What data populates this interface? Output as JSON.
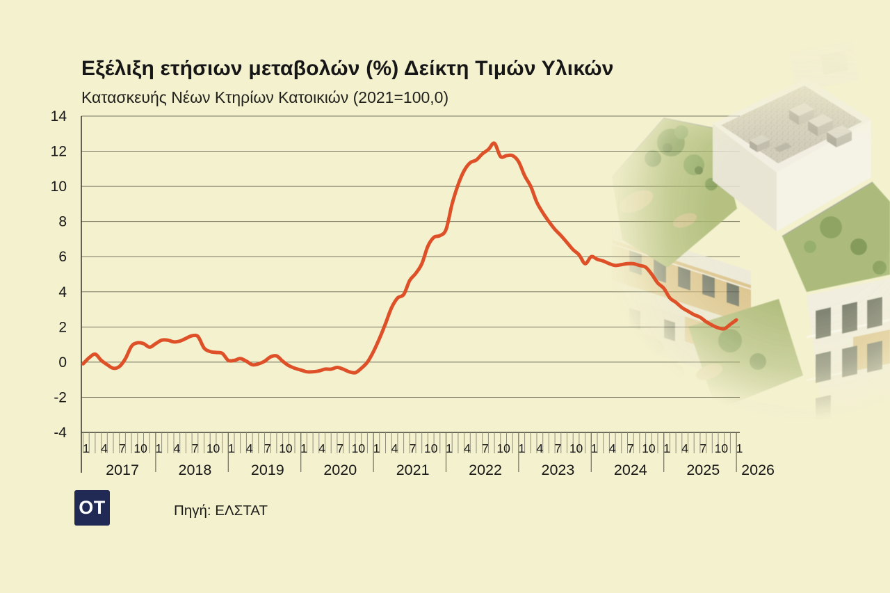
{
  "title": "Εξέλιξη ετήσιων μεταβολών (%) Δείκτη Τιμών Υλικών",
  "subtitle": "Κατασκευής Νέων Κτηρίων Κατοικιών (2021=100,0)",
  "source": {
    "logo": "OT",
    "text": "Πηγή: ΕΛΣΤΑΤ"
  },
  "colors": {
    "background": "#f4f1cf",
    "line": "#de5128",
    "grid": "#75755f",
    "axis": "#3f3f33",
    "month_tick": "#8d8d7b",
    "year_tick": "#6c6c5a",
    "text": "#161616",
    "logo_bg": "#202a55",
    "logo_text": "#ffffff"
  },
  "chart_data": {
    "type": "line",
    "title": "Εξέλιξη ετήσιων μεταβολών (%) Δείκτη Τιμών Υλικών",
    "subtitle": "Κατασκευής Νέων Κτηρίων Κατοικιών (2021=100,0)",
    "unit": "%",
    "grid": true,
    "legend": "none",
    "ylim": [
      -4,
      14
    ],
    "y_ticks": [
      14,
      12,
      10,
      8,
      6,
      4,
      2,
      0,
      -2,
      -4
    ],
    "x_unit": "month",
    "x_range": "2017-01 to 2026-01",
    "month_tick_labels": [
      "1",
      "4",
      "7",
      "10"
    ],
    "years": [
      "2017",
      "2018",
      "2019",
      "2020",
      "2021",
      "2022",
      "2023",
      "2024",
      "2025",
      "2026"
    ],
    "series": [
      {
        "name": "Ετήσια μεταβολή (%) Δείκτη Τιμών Υλικών Κατασκευής Νέων Κτηρίων Κατοικιών",
        "start": "2017-01",
        "end": "2026-01",
        "values": [
          -0.1,
          0.25,
          0.45,
          0.1,
          -0.15,
          -0.35,
          -0.25,
          0.2,
          0.9,
          1.1,
          1.05,
          0.85,
          1.05,
          1.25,
          1.25,
          1.15,
          1.2,
          1.35,
          1.5,
          1.45,
          0.8,
          0.6,
          0.55,
          0.5,
          0.1,
          0.1,
          0.2,
          0.05,
          -0.15,
          -0.1,
          0.05,
          0.3,
          0.35,
          0.05,
          -0.2,
          -0.35,
          -0.45,
          -0.55,
          -0.55,
          -0.5,
          -0.4,
          -0.4,
          -0.3,
          -0.4,
          -0.55,
          -0.6,
          -0.35,
          0.0,
          0.6,
          1.35,
          2.2,
          3.1,
          3.65,
          3.85,
          4.65,
          5.05,
          5.6,
          6.6,
          7.1,
          7.2,
          7.55,
          9.0,
          10.1,
          10.9,
          11.35,
          11.5,
          11.85,
          12.1,
          12.45,
          11.7,
          11.75,
          11.75,
          11.4,
          10.6,
          10.0,
          9.1,
          8.5,
          8.0,
          7.55,
          7.2,
          6.8,
          6.4,
          6.1,
          5.6,
          6.0,
          5.85,
          5.75,
          5.6,
          5.5,
          5.55,
          5.6,
          5.6,
          5.5,
          5.4,
          5.0,
          4.5,
          4.2,
          3.65,
          3.4,
          3.1,
          2.9,
          2.7,
          2.55,
          2.3,
          2.1,
          1.95,
          1.9,
          2.15,
          2.4
        ]
      }
    ]
  }
}
